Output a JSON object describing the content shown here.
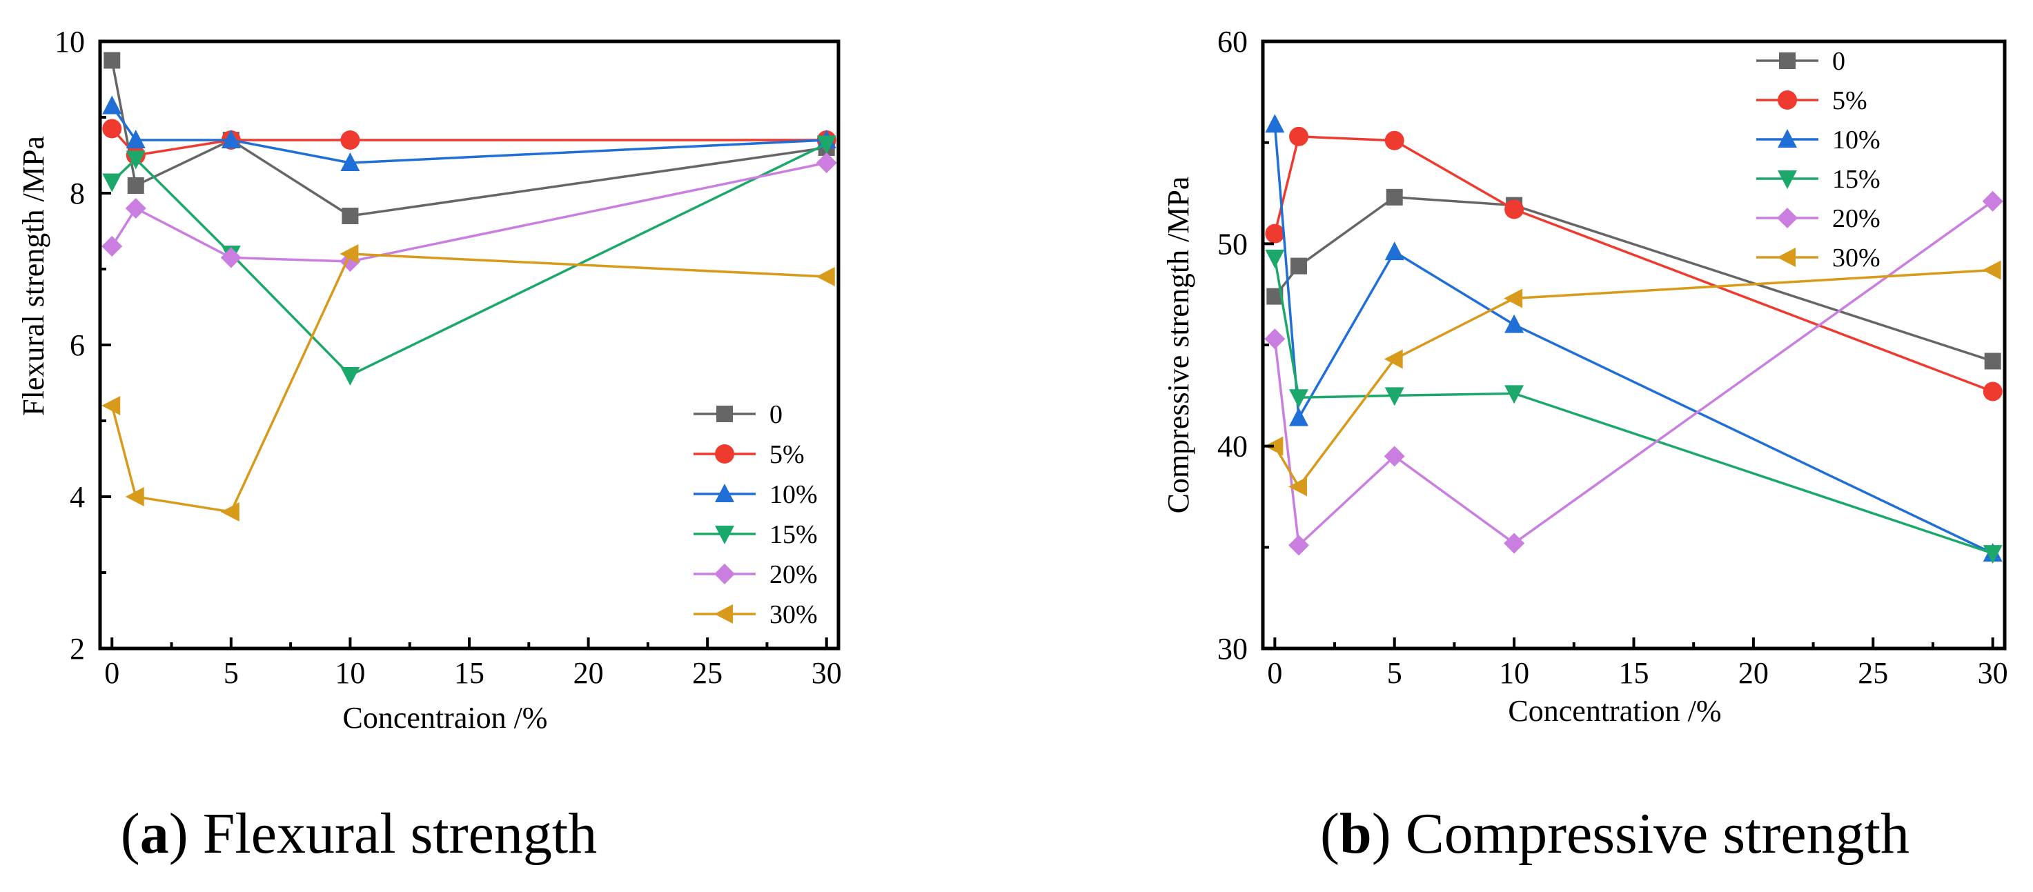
{
  "chart_data": [
    {
      "type": "line",
      "panel": "a",
      "caption_letter": "a",
      "caption_text": "Flexural strength",
      "xlabel": "Concentraion /%",
      "ylabel": "Flexural strength /MPa",
      "x_tick_labels": [
        "0",
        "5",
        "10",
        "15",
        "20",
        "25",
        "30"
      ],
      "x_tick_values": [
        0,
        5,
        10,
        15,
        20,
        25,
        30
      ],
      "y_tick_labels": [
        "2",
        "4",
        "6",
        "8",
        "10"
      ],
      "y_tick_values": [
        2,
        4,
        6,
        8,
        10
      ],
      "xlim": [
        -0.5,
        30.5
      ],
      "ylim": [
        2,
        10
      ],
      "legend_position": "lower-right",
      "x": [
        0,
        1,
        5,
        10,
        30
      ],
      "series": [
        {
          "name": "0",
          "color": "#666666",
          "marker": "square",
          "values": [
            9.75,
            8.1,
            8.7,
            7.7,
            8.6
          ]
        },
        {
          "name": "5%",
          "color": "#ee3a2f",
          "marker": "circle",
          "values": [
            8.85,
            8.5,
            8.7,
            8.7,
            8.7
          ]
        },
        {
          "name": "10%",
          "color": "#1f6fd6",
          "marker": "triangle-up",
          "values": [
            9.15,
            8.7,
            8.7,
            8.4,
            8.7
          ]
        },
        {
          "name": "15%",
          "color": "#1ca86a",
          "marker": "triangle-down",
          "values": [
            8.15,
            8.45,
            7.2,
            5.6,
            8.65
          ]
        },
        {
          "name": "20%",
          "color": "#c97ee0",
          "marker": "diamond",
          "values": [
            7.3,
            7.8,
            7.15,
            7.1,
            8.4
          ]
        },
        {
          "name": "30%",
          "color": "#d89a1b",
          "marker": "triangle-left",
          "values": [
            5.2,
            4.0,
            3.8,
            7.2,
            6.9
          ]
        }
      ]
    },
    {
      "type": "line",
      "panel": "b",
      "caption_letter": "b",
      "caption_text": "Compressive strength",
      "xlabel": "Concentration /%",
      "ylabel": "Compressive strength /MPa",
      "x_tick_labels": [
        "0",
        "5",
        "10",
        "15",
        "20",
        "25",
        "30"
      ],
      "x_tick_values": [
        0,
        5,
        10,
        15,
        20,
        25,
        30
      ],
      "y_tick_labels": [
        "30",
        "40",
        "50",
        "60"
      ],
      "y_tick_values": [
        30,
        40,
        50,
        60
      ],
      "xlim": [
        -0.5,
        30.5
      ],
      "ylim": [
        30,
        60
      ],
      "legend_position": "top-right",
      "x": [
        0,
        1,
        5,
        10,
        30
      ],
      "series": [
        {
          "name": "0",
          "color": "#666666",
          "marker": "square",
          "values": [
            47.4,
            48.9,
            52.3,
            51.9,
            44.2
          ]
        },
        {
          "name": "5%",
          "color": "#ee3a2f",
          "marker": "circle",
          "values": [
            50.5,
            55.3,
            55.1,
            51.7,
            42.7
          ]
        },
        {
          "name": "10%",
          "color": "#1f6fd6",
          "marker": "triangle-up",
          "values": [
            55.9,
            41.4,
            49.6,
            46.0,
            34.7
          ]
        },
        {
          "name": "15%",
          "color": "#1ca86a",
          "marker": "triangle-down",
          "values": [
            49.3,
            42.4,
            42.5,
            42.6,
            34.7
          ]
        },
        {
          "name": "20%",
          "color": "#c97ee0",
          "marker": "diamond",
          "values": [
            45.3,
            35.1,
            39.5,
            35.2,
            52.1
          ]
        },
        {
          "name": "30%",
          "color": "#d89a1b",
          "marker": "triangle-left",
          "values": [
            40.0,
            38.0,
            44.3,
            47.3,
            48.7
          ]
        }
      ]
    }
  ]
}
